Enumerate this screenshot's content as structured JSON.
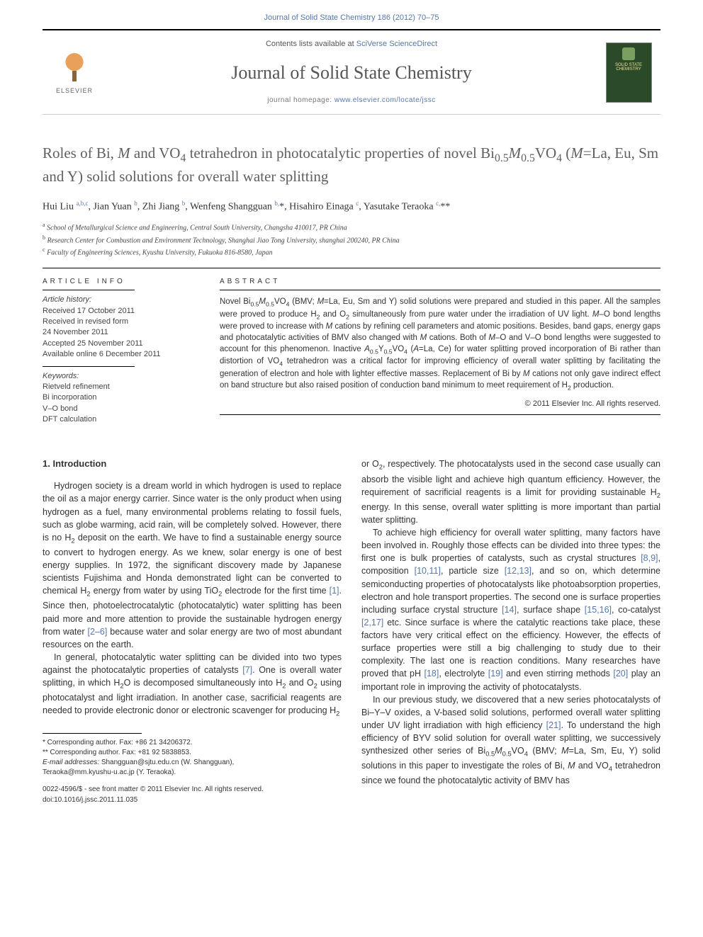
{
  "header": {
    "running_head": "Journal of Solid State Chemistry 186 (2012) 70–75",
    "contents_prefix": "Contents lists available at ",
    "contents_link": "SciVerse ScienceDirect",
    "journal_name": "Journal of Solid State Chemistry",
    "homepage_prefix": "journal homepage: ",
    "homepage_url": "www.elsevier.com/locate/jssc",
    "publisher": "ELSEVIER",
    "cover_text": "SOLID STATE CHEMISTRY"
  },
  "article": {
    "title_html": "Roles of Bi, <i>M</i> and VO<sub>4</sub> tetrahedron in photocatalytic properties of novel Bi<sub>0.5</sub><i>M</i><sub>0.5</sub>VO<sub>4</sub> (<i>M</i>=La, Eu, Sm and Y) solid solutions for overall water splitting",
    "authors_html": "Hui Liu <sup>a,b,c</sup>, Jian Yuan <sup>b</sup>, Zhi Jiang <sup>b</sup>, Wenfeng Shangguan <sup>b,</sup><span class=\"star\">*</span>, Hisahiro Einaga <sup>c</sup>, Yasutake Teraoka <sup>c,</sup><span class=\"star\">**</span>",
    "affiliations": [
      {
        "sup": "a",
        "text": "School of Metallurgical Science and Engineering, Central South University, Changsha 410017, PR China"
      },
      {
        "sup": "b",
        "text": "Research Center for Combustion and Environment Technology, Shanghai Jiao Tong University, shanghai 200240, PR China"
      },
      {
        "sup": "c",
        "text": "Faculty of Engineering Sciences, Kyushu University, Fukuoka 816-8580, Japan"
      }
    ]
  },
  "info": {
    "heading": "ARTICLE INFO",
    "history_label": "Article history:",
    "history": [
      "Received 17 October 2011",
      "Received in revised form",
      "24 November 2011",
      "Accepted 25 November 2011",
      "Available online 6 December 2011"
    ],
    "keywords_label": "Keywords:",
    "keywords": [
      "Rietveld refinement",
      "Bi incorporation",
      "V–O bond",
      "DFT calculation"
    ]
  },
  "abstract": {
    "heading": "ABSTRACT",
    "text_html": "Novel Bi<sub>0.5</sub><i>M</i><sub>0.5</sub>VO<sub>4</sub> (BMV; <i>M</i>=La, Eu, Sm and Y) solid solutions were prepared and studied in this paper. All the samples were proved to produce H<sub>2</sub> and O<sub>2</sub> simultaneously from pure water under the irradiation of UV light. <i>M</i>–O bond lengths were proved to increase with <i>M</i> cations by refining cell parameters and atomic positions. Besides, band gaps, energy gaps and photocatalytic activities of BMV also changed with <i>M</i> cations. Both of <i>M</i>–O and V–O bond lengths were suggested to account for this phenomenon. Inactive <i>A</i><sub>0.5</sub>Y<sub>0.5</sub>VO<sub>4</sub> (<i>A</i>=La, Ce) for water splitting proved incorporation of Bi rather than distortion of VO<sub>4</sub> tetrahedron was a critical factor for improving efficiency of overall water splitting by facilitating the generation of electron and hole with lighter effective masses. Replacement of Bi by <i>M</i> cations not only gave indirect effect on band structure but also raised position of conduction band minimum to meet requirement of H<sub>2</sub> production.",
    "copyright": "© 2011 Elsevier Inc. All rights reserved."
  },
  "body": {
    "section_heading": "1. Introduction",
    "left_paras_html": [
      "Hydrogen society is a dream world in which hydrogen is used to replace the oil as a major energy carrier. Since water is the only product when using hydrogen as a fuel, many environmental problems relating to fossil fuels, such as globe warming, acid rain, will be completely solved. However, there is no H<sub>2</sub> deposit on the earth. We have to find a sustainable energy source to convert to hydrogen energy. As we knew, solar energy is one of best energy supplies. In 1972, the significant discovery made by Japanese scientists Fujishima and Honda demonstrated light can be converted to chemical H<sub>2</sub> energy from water by using TiO<sub>2</sub> electrode for the first time <span class=\"ref\">[1]</span>. Since then, photoelectrocatalytic (photocatalytic) water splitting has been paid more and more attention to provide the sustainable hydrogen energy from water <span class=\"ref\">[2–6]</span> because water and solar energy are two of most abundant resources on the earth.",
      "In general, photocatalytic water splitting can be divided into two types against the photocatalytic properties of catalysts <span class=\"ref\">[7]</span>. One is overall water splitting, in which H<sub>2</sub>O is decomposed simultaneously into H<sub>2</sub> and O<sub>2</sub> using photocatalyst and light irradiation. In another case, sacrificial reagents are needed to provide electronic donor or electronic scavenger for producing H<sub>2</sub>"
    ],
    "right_paras_html": [
      "or O<sub>2</sub>, respectively. The photocatalysts used in the second case usually can absorb the visible light and achieve high quantum efficiency. However, the requirement of sacrificial reagents is a limit for providing sustainable H<sub>2</sub> energy. In this sense, overall water splitting is more important than partial water splitting.",
      "To achieve high efficiency for overall water splitting, many factors have been involved in. Roughly those effects can be divided into three types: the first one is bulk properties of catalysts, such as crystal structures <span class=\"ref\">[8,9]</span>, composition <span class=\"ref\">[10,11]</span>, particle size <span class=\"ref\">[12,13]</span>, and so on, which determine semiconducting properties of photocatalysts like photoabsorption properties, electron and hole transport properties. The second one is surface properties including surface crystal structure <span class=\"ref\">[14]</span>, surface shape <span class=\"ref\">[15,16]</span>, co-catalyst <span class=\"ref\">[2,17]</span> etc. Since surface is where the catalytic reactions take place, these factors have very critical effect on the efficiency. However, the effects of surface properties were still a big challenging to study due to their complexity. The last one is reaction conditions. Many researches have proved that pH <span class=\"ref\">[18]</span>, electrolyte <span class=\"ref\">[19]</span> and even stirring methods <span class=\"ref\">[20]</span> play an important role in improving the activity of photocatalysts.",
      "In our previous study, we discovered that a new series photocatalysts of Bi–Y–V oxides, a V-based solid solutions, performed overall water splitting under UV light irradiation with high efficiency <span class=\"ref\">[21]</span>. To understand the high efficiency of BYV solid solution for overall water splitting, we successively synthesized other series of Bi<sub>0.5</sub><i>M</i><sub>0.5</sub>VO<sub>4</sub> (BMV; <i>M</i>=La, Sm, Eu, Y) solid solutions in this paper to investigate the roles of Bi, <i>M</i> and VO<sub>4</sub> tetrahedron since we found the photocatalytic activity of BMV has"
    ]
  },
  "footnotes": {
    "corr1": "* Corresponding author. Fax: +86 21 34206372.",
    "corr2": "** Corresponding author. Fax: +81 92 5838853.",
    "email_label": "E-mail addresses:",
    "email1": "Shangguan@sjtu.edu.cn (W. Shangguan),",
    "email2": "Teraoka@mm.kyushu-u.ac.jp (Y. Teraoka).",
    "front_matter": "0022-4596/$ - see front matter © 2011 Elsevier Inc. All rights reserved.",
    "doi": "doi:10.1016/j.jssc.2011.11.035"
  },
  "colors": {
    "link": "#5577aa",
    "title_gray": "#606060",
    "rule": "#000000"
  }
}
